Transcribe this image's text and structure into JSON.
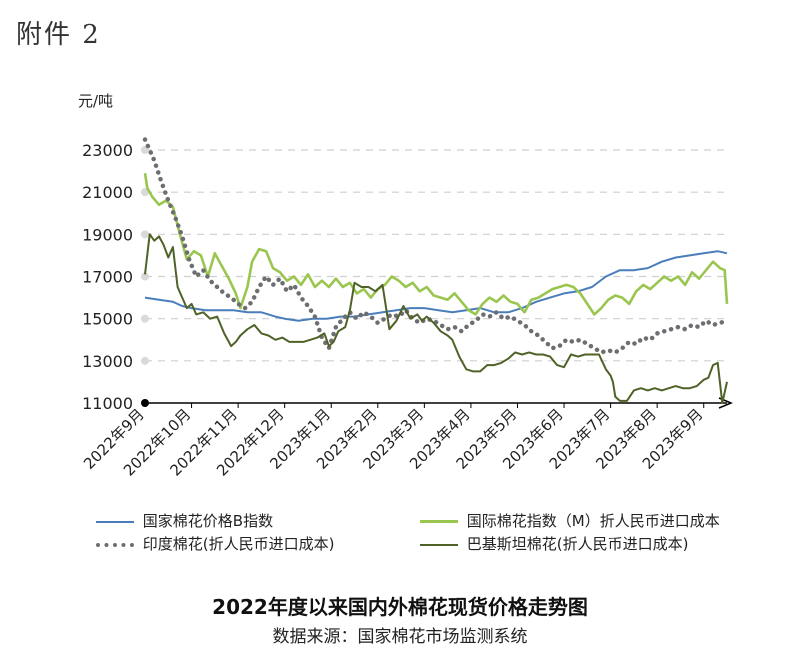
{
  "header": {
    "attachment": "附件 2"
  },
  "chart_data": {
    "type": "line",
    "title": "2022年度以来国内外棉花现货价格走势图",
    "source": "数据来源：国家棉花市场监测系统",
    "ylabel": "元/吨",
    "ylim": [
      11000,
      23000
    ],
    "yticks": [
      11000,
      13000,
      15000,
      17000,
      19000,
      21000,
      23000
    ],
    "ytick_labels": [
      "11000",
      "13000",
      "15000",
      "17000",
      "19000",
      "21000",
      "23000"
    ],
    "xlim": [
      0,
      12.5
    ],
    "x_ticks": [
      0,
      1,
      2,
      3,
      4,
      5,
      6,
      7,
      8,
      9,
      10,
      11,
      12
    ],
    "x_tick_labels": [
      "2022年9月",
      "2022年10月",
      "2022年11月",
      "2022年12月",
      "2023年1月",
      "2023年2月",
      "2023年3月",
      "2023年4月",
      "2023年5月",
      "2023年6月",
      "2023年7月",
      "2023年8月",
      "2023年9月"
    ],
    "grid": "horizontal dashed",
    "legend_position": "bottom",
    "series": [
      {
        "name": "国家棉花价格B指数",
        "color": "#4a7ebb",
        "style": "solid",
        "x": [
          0,
          0.3,
          0.6,
          0.8,
          1.0,
          1.3,
          1.6,
          1.9,
          2.2,
          2.5,
          2.8,
          3.0,
          3.3,
          3.6,
          3.9,
          4.2,
          4.5,
          4.8,
          5.1,
          5.4,
          5.7,
          6.0,
          6.3,
          6.6,
          6.9,
          7.2,
          7.5,
          7.8,
          8.1,
          8.4,
          8.7,
          9.0,
          9.3,
          9.6,
          9.9,
          10.2,
          10.5,
          10.8,
          11.1,
          11.4,
          11.7,
          12.0,
          12.3,
          12.5
        ],
        "y": [
          16000,
          15900,
          15800,
          15600,
          15500,
          15400,
          15400,
          15400,
          15300,
          15300,
          15100,
          15000,
          14900,
          15000,
          15000,
          15100,
          15100,
          15200,
          15300,
          15400,
          15500,
          15500,
          15400,
          15300,
          15400,
          15500,
          15300,
          15300,
          15500,
          15800,
          16000,
          16200,
          16300,
          16500,
          17000,
          17300,
          17300,
          17400,
          17700,
          17900,
          18000,
          18100,
          18200,
          18100
        ]
      },
      {
        "name": "国际棉花指数（M）折人民币进口成本",
        "color": "#9ac54f",
        "style": "solid",
        "x": [
          0,
          0.05,
          0.15,
          0.3,
          0.45,
          0.6,
          0.75,
          0.9,
          1.05,
          1.2,
          1.35,
          1.5,
          1.65,
          1.8,
          1.95,
          2.05,
          2.2,
          2.3,
          2.45,
          2.6,
          2.75,
          2.9,
          3.05,
          3.2,
          3.35,
          3.5,
          3.65,
          3.8,
          3.95,
          4.1,
          4.25,
          4.4,
          4.55,
          4.7,
          4.85,
          5.0,
          5.15,
          5.3,
          5.45,
          5.6,
          5.75,
          5.9,
          6.05,
          6.2,
          6.35,
          6.5,
          6.65,
          6.8,
          6.95,
          7.1,
          7.25,
          7.4,
          7.55,
          7.7,
          7.85,
          8.0,
          8.15,
          8.3,
          8.45,
          8.6,
          8.75,
          8.9,
          9.05,
          9.2,
          9.35,
          9.5,
          9.65,
          9.8,
          9.95,
          10.1,
          10.25,
          10.4,
          10.55,
          10.7,
          10.85,
          11.0,
          11.15,
          11.3,
          11.45,
          11.6,
          11.75,
          11.9,
          12.05,
          12.2,
          12.35,
          12.45,
          12.5
        ],
        "y": [
          21900,
          21200,
          20800,
          20400,
          20600,
          20300,
          19000,
          17800,
          18200,
          18000,
          17000,
          18100,
          17500,
          16900,
          16200,
          15500,
          16500,
          17700,
          18300,
          18200,
          17400,
          17200,
          16800,
          17000,
          16600,
          17100,
          16500,
          16800,
          16500,
          16900,
          16500,
          16700,
          16200,
          16400,
          16000,
          16400,
          16600,
          17000,
          16800,
          16500,
          16700,
          16300,
          16500,
          16100,
          16000,
          15900,
          16200,
          15800,
          15400,
          15200,
          15700,
          16000,
          15800,
          16100,
          15800,
          15700,
          15300,
          15900,
          16000,
          16200,
          16400,
          16500,
          16600,
          16500,
          16200,
          15700,
          15200,
          15500,
          15900,
          16100,
          16000,
          15700,
          16300,
          16600,
          16400,
          16700,
          17000,
          16800,
          17000,
          16600,
          17200,
          16900,
          17300,
          17700,
          17400,
          17300,
          15700
        ]
      },
      {
        "name": "印度棉花(折人民币进口成本)",
        "color": "#6d6e71",
        "style": "dotted",
        "x": [
          0,
          0.1,
          0.2,
          0.35,
          0.5,
          0.65,
          0.8,
          0.95,
          1.1,
          1.25,
          1.4,
          1.55,
          1.7,
          1.85,
          2.0,
          2.15,
          2.3,
          2.45,
          2.6,
          2.75,
          2.9,
          3.05,
          3.2,
          3.35,
          3.5,
          3.65,
          3.8,
          3.95,
          4.1,
          4.25,
          4.4,
          4.55,
          4.7,
          4.85,
          5.0,
          5.15,
          5.3,
          5.45,
          5.6,
          5.75,
          5.9,
          6.05,
          6.2,
          6.35,
          6.5,
          6.65,
          6.8,
          6.95,
          7.1,
          7.25,
          7.4,
          7.55,
          7.7,
          7.85,
          8.0,
          8.15,
          8.3,
          8.45,
          8.6,
          8.75,
          8.9,
          9.05,
          9.2,
          9.35,
          9.5,
          9.65,
          9.8,
          9.95,
          10.1,
          10.25,
          10.4,
          10.55,
          10.7,
          10.85,
          11.0,
          11.15,
          11.3,
          11.45,
          11.6,
          11.75,
          11.9,
          12.05,
          12.2,
          12.35,
          12.5
        ],
        "y": [
          23500,
          23000,
          22500,
          21500,
          20600,
          19800,
          18900,
          17800,
          17000,
          17300,
          16800,
          16500,
          16200,
          16000,
          15700,
          15500,
          15800,
          16500,
          17000,
          16600,
          16900,
          16300,
          16600,
          16000,
          15600,
          15100,
          14100,
          13600,
          14600,
          15000,
          15300,
          15000,
          15300,
          15100,
          14800,
          15000,
          15200,
          15100,
          15400,
          15000,
          14800,
          15000,
          14900,
          14700,
          14500,
          14600,
          14400,
          14700,
          14900,
          15200,
          15100,
          15300,
          15000,
          15100,
          14900,
          14700,
          14400,
          14200,
          13900,
          13600,
          13700,
          14000,
          13900,
          14000,
          13800,
          13600,
          13400,
          13500,
          13400,
          13600,
          13900,
          13800,
          14100,
          14000,
          14300,
          14400,
          14500,
          14600,
          14500,
          14700,
          14600,
          14900,
          14700,
          14800,
          14900
        ]
      },
      {
        "name": "巴基斯坦棉花(折人民币进口成本)",
        "color": "#4f6228",
        "style": "solid",
        "x": [
          0,
          0.1,
          0.2,
          0.3,
          0.4,
          0.5,
          0.6,
          0.7,
          0.8,
          0.9,
          1.0,
          1.1,
          1.25,
          1.4,
          1.55,
          1.7,
          1.85,
          1.95,
          2.05,
          2.2,
          2.35,
          2.5,
          2.65,
          2.8,
          2.95,
          3.1,
          3.25,
          3.4,
          3.55,
          3.7,
          3.85,
          3.95,
          4.05,
          4.15,
          4.3,
          4.4,
          4.5,
          4.65,
          4.8,
          4.95,
          5.1,
          5.25,
          5.4,
          5.55,
          5.7,
          5.85,
          5.95,
          6.05,
          6.2,
          6.35,
          6.5,
          6.6,
          6.75,
          6.9,
          7.05,
          7.2,
          7.35,
          7.5,
          7.65,
          7.8,
          7.95,
          8.1,
          8.25,
          8.4,
          8.55,
          8.7,
          8.85,
          9.0,
          9.15,
          9.3,
          9.45,
          9.6,
          9.75,
          9.9,
          10.0,
          10.05,
          10.1,
          10.2,
          10.35,
          10.5,
          10.65,
          10.8,
          10.95,
          11.1,
          11.25,
          11.4,
          11.55,
          11.7,
          11.85,
          12.0,
          12.1,
          12.2,
          12.3,
          12.4,
          12.5
        ],
        "y": [
          17100,
          19000,
          18700,
          18900,
          18500,
          17900,
          18400,
          16500,
          16000,
          15500,
          15700,
          15200,
          15300,
          15000,
          15100,
          14300,
          13700,
          13900,
          14200,
          14500,
          14700,
          14300,
          14200,
          14000,
          14100,
          13900,
          13900,
          13900,
          14000,
          14100,
          14300,
          13700,
          13900,
          14400,
          14600,
          15400,
          16700,
          16500,
          16500,
          16300,
          16600,
          14500,
          14900,
          15600,
          15000,
          15200,
          14900,
          15100,
          14800,
          14400,
          14200,
          14000,
          13200,
          12600,
          12500,
          12500,
          12800,
          12800,
          12900,
          13100,
          13400,
          13300,
          13400,
          13300,
          13300,
          13200,
          12800,
          12700,
          13300,
          13200,
          13300,
          13300,
          13300,
          12600,
          12300,
          12000,
          11300,
          11100,
          11100,
          11600,
          11700,
          11600,
          11700,
          11600,
          11700,
          11800,
          11700,
          11700,
          11800,
          12100,
          12200,
          12800,
          12900,
          11000,
          12000
        ]
      }
    ]
  }
}
